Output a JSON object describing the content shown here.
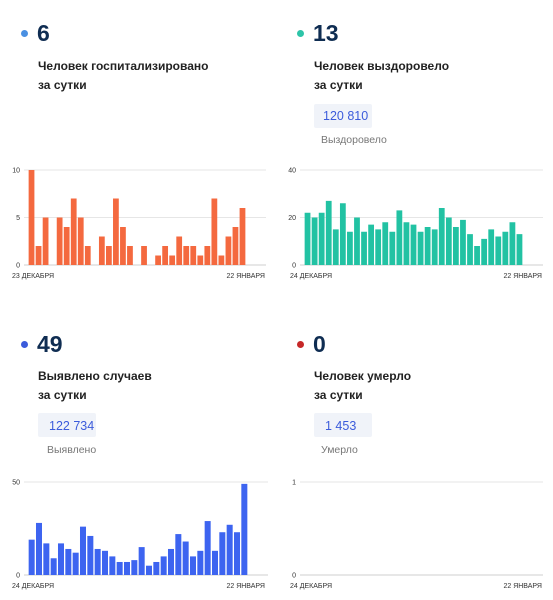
{
  "panels": [
    {
      "number": "6",
      "dot_color": "#4a90e2",
      "description": "Человек госпитализировано\nза сутки",
      "total": "",
      "total_label": ""
    },
    {
      "number": "13",
      "dot_color": "#2dc4a8",
      "description": "Человек выздоровело\nза сутки",
      "total": "120 810",
      "total_label": "Выздоровело"
    },
    {
      "number": "49",
      "dot_color": "#3b5bdb",
      "description": "Выявлено случаев\nза сутки",
      "total": "122 734",
      "total_label": "Выявлено"
    },
    {
      "number": "0",
      "dot_color": "#c62828",
      "description": "Человек умерло\nза сутки",
      "total": "1 453",
      "total_label": "Умерло"
    }
  ],
  "chart_data": [
    {
      "type": "bar",
      "color": "#f4693f",
      "x_start_label": "23 ДЕКАБРЯ",
      "x_end_label": "22 ЯНВАРЯ",
      "y_ticks": [
        "0",
        "5",
        "10"
      ],
      "ylim": [
        0,
        10
      ],
      "values": [
        10,
        2,
        5,
        0,
        5,
        4,
        7,
        5,
        2,
        0,
        3,
        2,
        7,
        4,
        2,
        0,
        2,
        0,
        1,
        2,
        1,
        3,
        2,
        2,
        1,
        2,
        7,
        1,
        3,
        4,
        6
      ]
    },
    {
      "type": "bar",
      "color": "#22c2a3",
      "x_start_label": "24 ДЕКАБРЯ",
      "x_end_label": "22 ЯНВАРЯ",
      "y_ticks": [
        "0",
        "20",
        "40"
      ],
      "ylim": [
        0,
        40
      ],
      "values": [
        22,
        20,
        22,
        27,
        15,
        26,
        14,
        20,
        14,
        17,
        15,
        18,
        14,
        23,
        18,
        17,
        14,
        16,
        15,
        24,
        20,
        16,
        19,
        13,
        8,
        11,
        15,
        12,
        14,
        18,
        13
      ]
    },
    {
      "type": "bar",
      "color": "#3d64f0",
      "x_start_label": "24 ДЕКАБРЯ",
      "x_end_label": "22 ЯНВАРЯ",
      "y_ticks": [
        "0",
        "50"
      ],
      "ylim": [
        0,
        50
      ],
      "values": [
        19,
        28,
        17,
        9,
        17,
        14,
        12,
        26,
        21,
        14,
        13,
        10,
        7,
        7,
        8,
        15,
        5,
        7,
        10,
        14,
        22,
        18,
        10,
        13,
        29,
        13,
        23,
        27,
        23,
        49
      ]
    },
    {
      "type": "bar",
      "color": "#c62828",
      "x_start_label": "24 ДЕКАБРЯ",
      "x_end_label": "22 ЯНВАРЯ",
      "y_ticks": [
        "0",
        "1"
      ],
      "ylim": [
        0,
        1
      ],
      "values": []
    }
  ]
}
